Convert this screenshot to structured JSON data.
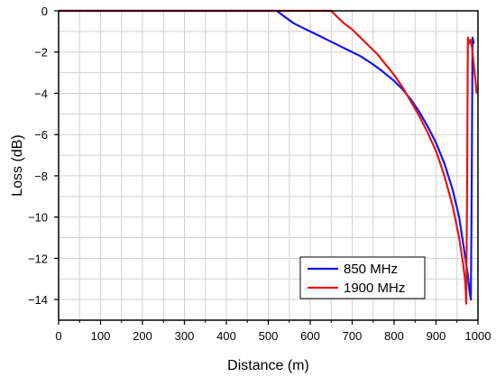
{
  "chart_data": {
    "type": "line",
    "xlabel": "Distance (m)",
    "ylabel": "Loss (dB)",
    "xlim": [
      0,
      1000
    ],
    "ylim": [
      -15,
      0
    ],
    "xticks": [
      0,
      100,
      200,
      300,
      400,
      500,
      600,
      700,
      800,
      900,
      1000
    ],
    "yticks": [
      0,
      -2,
      -4,
      -6,
      -8,
      -10,
      -12,
      -14
    ],
    "xtick_labels": [
      "0",
      "100",
      "200",
      "300",
      "400",
      "500",
      "600",
      "700",
      "800",
      "900",
      "1000"
    ],
    "ytick_labels": [
      "0",
      "−2",
      "−4",
      "−6",
      "−8",
      "−10",
      "−12",
      "−14"
    ],
    "grid": true,
    "legend_position": "bottom-right",
    "series": [
      {
        "name": "850 MHz",
        "color": "#1515e6",
        "x": [
          0,
          100,
          200,
          300,
          400,
          500,
          520,
          540,
          560,
          580,
          600,
          620,
          650,
          680,
          700,
          720,
          750,
          770,
          800,
          820,
          840,
          860,
          880,
          900,
          920,
          940,
          955,
          965,
          975,
          980,
          983,
          985,
          987,
          990
        ],
        "y": [
          0,
          0,
          0,
          0,
          0,
          0,
          0,
          -0.3,
          -0.6,
          -0.8,
          -1.0,
          -1.2,
          -1.5,
          -1.8,
          -2.0,
          -2.2,
          -2.6,
          -2.9,
          -3.4,
          -3.8,
          -4.3,
          -4.9,
          -5.6,
          -6.4,
          -7.4,
          -8.7,
          -10.0,
          -11.3,
          -12.7,
          -13.6,
          -14.0,
          -9.0,
          -1.3,
          -1.6
        ]
      },
      {
        "name": "1900 MHz",
        "color": "#e61515",
        "x": [
          0,
          100,
          200,
          300,
          400,
          500,
          600,
          650,
          660,
          680,
          700,
          720,
          740,
          760,
          780,
          800,
          820,
          840,
          860,
          880,
          900,
          920,
          940,
          955,
          965,
          970,
          972,
          974,
          976,
          978,
          982,
          986,
          992,
          997
        ],
        "y": [
          0,
          0,
          0,
          0,
          0,
          0,
          0,
          0,
          -0.2,
          -0.6,
          -0.9,
          -1.3,
          -1.7,
          -2.1,
          -2.6,
          -3.1,
          -3.7,
          -4.4,
          -5.1,
          -5.9,
          -6.8,
          -8.0,
          -9.5,
          -11.0,
          -12.3,
          -13.2,
          -14.2,
          -9.0,
          -1.3,
          -1.6,
          -1.4,
          -1.8,
          -3.0,
          -4.0
        ]
      }
    ]
  }
}
